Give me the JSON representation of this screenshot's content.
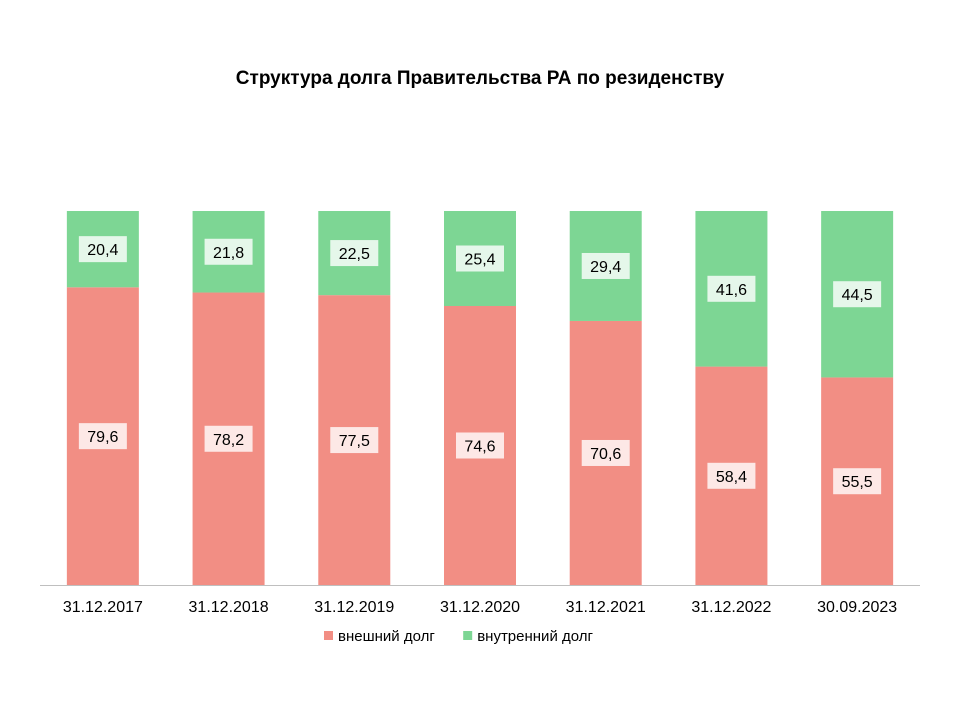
{
  "chart_data": {
    "type": "bar",
    "stacked": true,
    "title": "Структура долга Правительства РА по резиденству",
    "xlabel": "",
    "ylabel": "",
    "ylim": [
      0,
      100
    ],
    "grid": false,
    "legend_position": "bottom",
    "categories": [
      "31.12.2017",
      "31.12.2018",
      "31.12.2019",
      "31.12.2020",
      "31.12.2021",
      "31.12.2022",
      "30.09.2023"
    ],
    "series": [
      {
        "name": "внешний долг",
        "color": "#F28E84",
        "values": [
          79.6,
          78.2,
          77.5,
          74.6,
          70.6,
          58.4,
          55.5
        ],
        "labels": [
          "79,6",
          "78,2",
          "77,5",
          "74,6",
          "70,6",
          "58,4",
          "55,5"
        ]
      },
      {
        "name": "внутренний долг",
        "color": "#7DD694",
        "values": [
          20.4,
          21.8,
          22.5,
          25.4,
          29.4,
          41.6,
          44.5
        ],
        "labels": [
          "20,4",
          "21,8",
          "22,5",
          "25,4",
          "29,4",
          "41,6",
          "44,5"
        ]
      }
    ]
  }
}
